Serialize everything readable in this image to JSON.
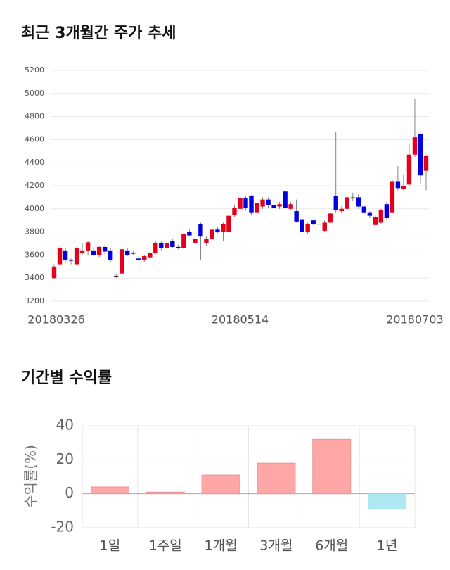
{
  "chart_data": [
    {
      "type": "candlestick",
      "title": "최근 3개월간 주가 추세",
      "categories": [
        "20180326",
        null,
        null,
        null,
        null,
        null,
        null,
        null,
        null,
        null,
        null,
        null,
        null,
        null,
        null,
        null,
        null,
        null,
        null,
        null,
        null,
        null,
        null,
        null,
        null,
        null,
        null,
        null,
        null,
        null,
        null,
        null,
        null,
        "20180514",
        null,
        null,
        null,
        null,
        null,
        null,
        null,
        null,
        null,
        null,
        null,
        null,
        null,
        null,
        null,
        null,
        null,
        null,
        null,
        null,
        null,
        null,
        null,
        null,
        null,
        null,
        null,
        null,
        null,
        null,
        "20180703",
        null,
        null
      ],
      "open": [
        3400,
        3520,
        3640,
        3560,
        3520,
        3620,
        3640,
        3640,
        3600,
        3670,
        3640,
        3420,
        3440,
        3640,
        3610,
        3570,
        3560,
        3580,
        3620,
        3700,
        3660,
        3720,
        3670,
        3660,
        3800,
        3700,
        3870,
        3700,
        3740,
        3820,
        3800,
        3800,
        3950,
        4000,
        4090,
        4110,
        3970,
        4020,
        4080,
        4030,
        4020,
        4150,
        4000,
        3980,
        3910,
        3800,
        3900,
        3870,
        3810,
        3880,
        4110,
        3980,
        4000,
        4090,
        4100,
        4020,
        3970,
        3860,
        3880,
        4040,
        3970,
        4240,
        4170,
        4210,
        4470,
        4650,
        4330
      ],
      "high": [
        3520,
        3670,
        3660,
        3570,
        3670,
        3700,
        3720,
        3660,
        3680,
        3690,
        3660,
        3440,
        3660,
        3660,
        3640,
        3590,
        3600,
        3640,
        3720,
        3720,
        3720,
        3740,
        3690,
        3800,
        3820,
        3760,
        3880,
        3760,
        3830,
        3840,
        3880,
        3960,
        4030,
        4110,
        4110,
        4120,
        4070,
        4100,
        4100,
        4060,
        4060,
        4160,
        4060,
        4080,
        3930,
        3880,
        3910,
        3900,
        3900,
        3980,
        4670,
        4020,
        4120,
        4140,
        4130,
        4030,
        3980,
        3950,
        4000,
        4060,
        4250,
        4370,
        4300,
        4560,
        4950,
        4660,
        4470
      ],
      "low": [
        3390,
        3510,
        3530,
        3520,
        3510,
        3600,
        3600,
        3590,
        3580,
        3600,
        3540,
        3400,
        3430,
        3590,
        3600,
        3550,
        3540,
        3560,
        3610,
        3640,
        3640,
        3660,
        3650,
        3640,
        3760,
        3680,
        3560,
        3680,
        3720,
        3790,
        3720,
        3790,
        3930,
        3980,
        3990,
        3950,
        3960,
        4000,
        4010,
        3990,
        4000,
        3990,
        3990,
        3880,
        3750,
        3780,
        3860,
        3860,
        3800,
        3870,
        3970,
        3960,
        3990,
        4070,
        4000,
        3950,
        3920,
        3850,
        3870,
        3900,
        3960,
        4160,
        4160,
        4200,
        4450,
        4220,
        4160
      ],
      "close": [
        3500,
        3660,
        3560,
        3550,
        3660,
        3640,
        3710,
        3600,
        3670,
        3630,
        3560,
        3420,
        3650,
        3600,
        3620,
        3560,
        3590,
        3620,
        3700,
        3660,
        3700,
        3670,
        3660,
        3780,
        3770,
        3740,
        3760,
        3740,
        3820,
        3800,
        3870,
        3940,
        4010,
        4090,
        4010,
        3970,
        4050,
        4080,
        4030,
        4010,
        4040,
        4010,
        4040,
        3890,
        3800,
        3870,
        3870,
        3870,
        3880,
        3960,
        3990,
        4000,
        4100,
        4100,
        4020,
        3970,
        3940,
        3930,
        3990,
        3920,
        4240,
        4180,
        4200,
        4470,
        4620,
        4290,
        4460
      ],
      "up_color": "#e3001b",
      "down_color": "#0000e1",
      "ylim": [
        3200,
        5200
      ],
      "yticks": [
        3200,
        3400,
        3600,
        3800,
        4000,
        4200,
        4400,
        4600,
        4800,
        5000,
        5200
      ],
      "grid": true
    },
    {
      "type": "bar",
      "title": "기간별 수익률",
      "ylabel": "수익률(%)",
      "categories": [
        "1일",
        "1주일",
        "1개월",
        "3개월",
        "6개월",
        "1년"
      ],
      "values": [
        4,
        1,
        11,
        18,
        32,
        -9
      ],
      "color": "#ffa6a6",
      "negative_color": "#aee9f2",
      "ylim": [
        -20,
        40
      ],
      "yticks": [
        40,
        20,
        0,
        -20
      ],
      "grid": true
    }
  ]
}
